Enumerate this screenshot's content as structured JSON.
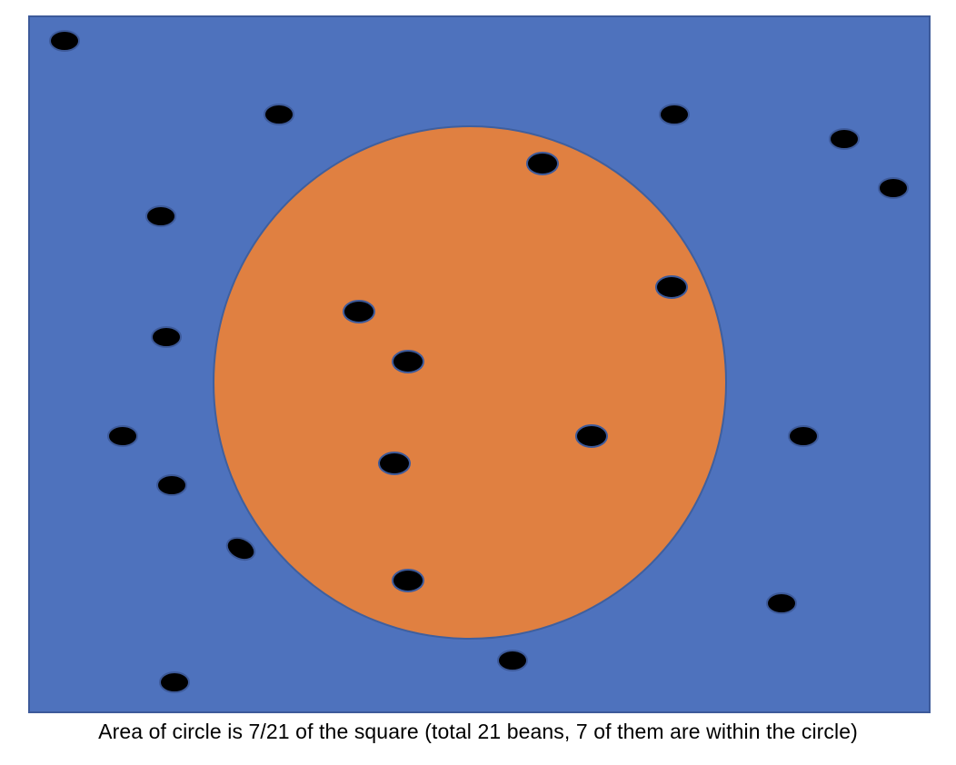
{
  "caption": "Area of circle is 7/21 of the square (total 21 beans, 7 of them are within the circle)",
  "colors": {
    "square_fill": "#4e72bd",
    "square_stroke": "#3d5a9a",
    "circle_fill": "#e08041",
    "circle_stroke": "#3f5f9e",
    "bean_fill": "#000000",
    "bean_stroke": "#3d5a9a",
    "caption_text": "#000000"
  },
  "beans": {
    "total": 21,
    "inside_circle": 7
  }
}
